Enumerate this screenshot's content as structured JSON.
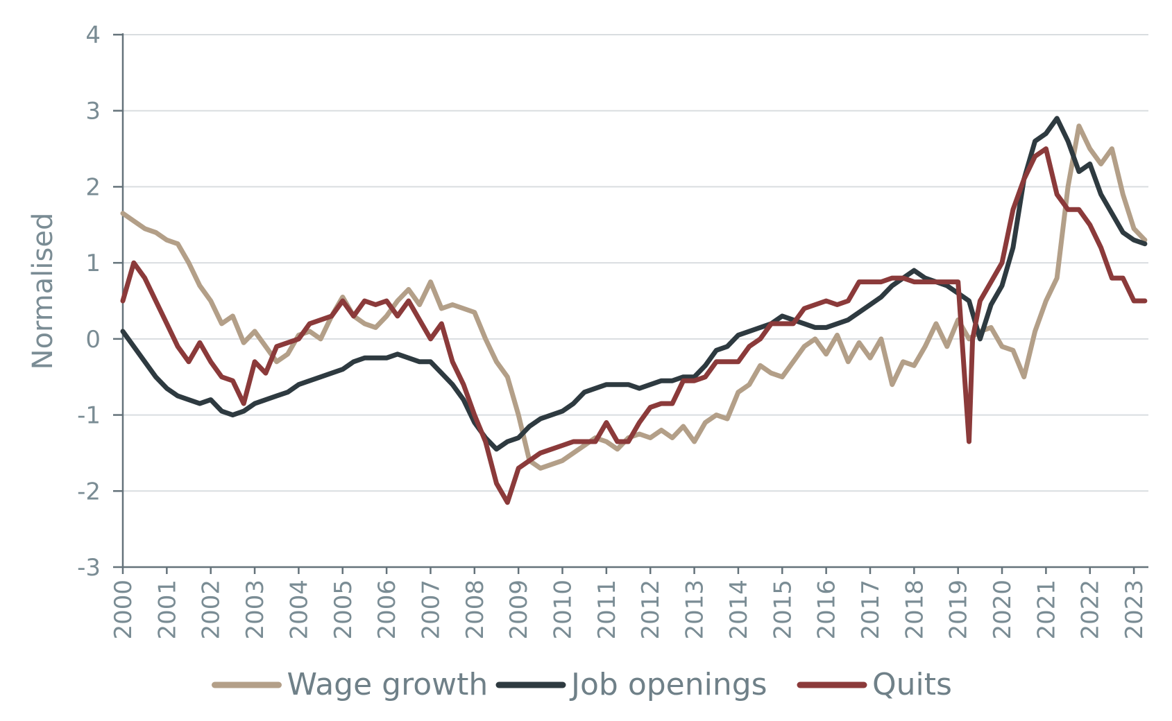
{
  "chart_data": {
    "type": "line",
    "title": "",
    "xlabel": "",
    "ylabel": "Normalised",
    "xlim": [
      2000,
      2023.33
    ],
    "ylim": [
      -3,
      4
    ],
    "yticks": [
      -3,
      -2,
      -1,
      0,
      1,
      2,
      3,
      4
    ],
    "ytick_labels": [
      "-3",
      "-2",
      "-1",
      "0",
      "1",
      "2",
      "3",
      "4"
    ],
    "xticks": [
      2000,
      2001,
      2002,
      2003,
      2004,
      2005,
      2006,
      2007,
      2008,
      2009,
      2010,
      2011,
      2012,
      2013,
      2014,
      2015,
      2016,
      2017,
      2018,
      2019,
      2020,
      2021,
      2022,
      2023
    ],
    "xtick_labels": [
      "2000",
      "2001",
      "2002",
      "2003",
      "2004",
      "2005",
      "2006",
      "2007",
      "2008",
      "2009",
      "2010",
      "2011",
      "2012",
      "2013",
      "2014",
      "2015",
      "2016",
      "2017",
      "2018",
      "2019",
      "2020",
      "2021",
      "2022",
      "2023"
    ],
    "grid": "horizontal",
    "legend_position": "bottom",
    "series": [
      {
        "name": "Wage growth",
        "color": "#b39f88",
        "x": [
          2000.0,
          2000.25,
          2000.5,
          2000.75,
          2001.0,
          2001.25,
          2001.5,
          2001.75,
          2002.0,
          2002.25,
          2002.5,
          2002.75,
          2003.0,
          2003.25,
          2003.5,
          2003.75,
          2004.0,
          2004.25,
          2004.5,
          2004.75,
          2005.0,
          2005.25,
          2005.5,
          2005.75,
          2006.0,
          2006.25,
          2006.5,
          2006.75,
          2007.0,
          2007.25,
          2007.5,
          2007.75,
          2008.0,
          2008.25,
          2008.5,
          2008.75,
          2009.0,
          2009.25,
          2009.5,
          2009.75,
          2010.0,
          2010.25,
          2010.5,
          2010.75,
          2011.0,
          2011.25,
          2011.5,
          2011.75,
          2012.0,
          2012.25,
          2012.5,
          2012.75,
          2013.0,
          2013.25,
          2013.5,
          2013.75,
          2014.0,
          2014.25,
          2014.5,
          2014.75,
          2015.0,
          2015.25,
          2015.5,
          2015.75,
          2016.0,
          2016.25,
          2016.5,
          2016.75,
          2017.0,
          2017.25,
          2017.5,
          2017.75,
          2018.0,
          2018.25,
          2018.5,
          2018.75,
          2019.0,
          2019.25,
          2019.5,
          2019.75,
          2020.0,
          2020.25,
          2020.5,
          2020.75,
          2021.0,
          2021.25,
          2021.5,
          2021.75,
          2022.0,
          2022.25,
          2022.5,
          2022.75,
          2023.0,
          2023.25
        ],
        "values": [
          1.65,
          1.55,
          1.45,
          1.4,
          1.3,
          1.25,
          1.0,
          0.7,
          0.5,
          0.2,
          0.3,
          -0.05,
          0.1,
          -0.1,
          -0.3,
          -0.2,
          0.05,
          0.1,
          0.0,
          0.3,
          0.55,
          0.3,
          0.2,
          0.15,
          0.3,
          0.5,
          0.65,
          0.45,
          0.75,
          0.4,
          0.45,
          0.4,
          0.35,
          0.0,
          -0.3,
          -0.5,
          -1.0,
          -1.6,
          -1.7,
          -1.65,
          -1.6,
          -1.5,
          -1.4,
          -1.3,
          -1.35,
          -1.45,
          -1.3,
          -1.25,
          -1.3,
          -1.2,
          -1.3,
          -1.15,
          -1.35,
          -1.1,
          -1.0,
          -1.05,
          -0.7,
          -0.6,
          -0.35,
          -0.45,
          -0.5,
          -0.3,
          -0.1,
          0.0,
          -0.2,
          0.05,
          -0.3,
          -0.05,
          -0.25,
          0.0,
          -0.6,
          -0.3,
          -0.35,
          -0.1,
          0.2,
          -0.1,
          0.25,
          0.0,
          0.1,
          0.15,
          -0.1,
          -0.15,
          -0.5,
          0.1,
          0.5,
          0.8,
          2.0,
          2.8,
          2.5,
          2.3,
          2.5,
          1.9,
          1.45,
          1.3
        ]
      },
      {
        "name": "Job openings",
        "color": "#2e3a40",
        "x": [
          2000.0,
          2000.25,
          2000.5,
          2000.75,
          2001.0,
          2001.25,
          2001.5,
          2001.75,
          2002.0,
          2002.25,
          2002.5,
          2002.75,
          2003.0,
          2003.25,
          2003.5,
          2003.75,
          2004.0,
          2004.25,
          2004.5,
          2004.75,
          2005.0,
          2005.25,
          2005.5,
          2005.75,
          2006.0,
          2006.25,
          2006.5,
          2006.75,
          2007.0,
          2007.25,
          2007.5,
          2007.75,
          2008.0,
          2008.25,
          2008.5,
          2008.75,
          2009.0,
          2009.25,
          2009.5,
          2009.75,
          2010.0,
          2010.25,
          2010.5,
          2010.75,
          2011.0,
          2011.25,
          2011.5,
          2011.75,
          2012.0,
          2012.25,
          2012.5,
          2012.75,
          2013.0,
          2013.25,
          2013.5,
          2013.75,
          2014.0,
          2014.25,
          2014.5,
          2014.75,
          2015.0,
          2015.25,
          2015.5,
          2015.75,
          2016.0,
          2016.25,
          2016.5,
          2016.75,
          2017.0,
          2017.25,
          2017.5,
          2017.75,
          2018.0,
          2018.25,
          2018.5,
          2018.75,
          2019.0,
          2019.25,
          2019.5,
          2019.75,
          2020.0,
          2020.25,
          2020.5,
          2020.75,
          2021.0,
          2021.25,
          2021.5,
          2021.75,
          2022.0,
          2022.25,
          2022.5,
          2022.75,
          2023.0,
          2023.25
        ],
        "values": [
          0.1,
          -0.1,
          -0.3,
          -0.5,
          -0.65,
          -0.75,
          -0.8,
          -0.85,
          -0.8,
          -0.95,
          -1.0,
          -0.95,
          -0.85,
          -0.8,
          -0.75,
          -0.7,
          -0.6,
          -0.55,
          -0.5,
          -0.45,
          -0.4,
          -0.3,
          -0.25,
          -0.25,
          -0.25,
          -0.2,
          -0.25,
          -0.3,
          -0.3,
          -0.45,
          -0.6,
          -0.8,
          -1.1,
          -1.3,
          -1.45,
          -1.35,
          -1.3,
          -1.15,
          -1.05,
          -1.0,
          -0.95,
          -0.85,
          -0.7,
          -0.65,
          -0.6,
          -0.6,
          -0.6,
          -0.65,
          -0.6,
          -0.55,
          -0.55,
          -0.5,
          -0.5,
          -0.35,
          -0.15,
          -0.1,
          0.05,
          0.1,
          0.15,
          0.2,
          0.3,
          0.25,
          0.2,
          0.15,
          0.15,
          0.2,
          0.25,
          0.35,
          0.45,
          0.55,
          0.7,
          0.8,
          0.9,
          0.8,
          0.75,
          0.7,
          0.6,
          0.5,
          0.0,
          0.45,
          0.7,
          1.2,
          2.1,
          2.6,
          2.7,
          2.9,
          2.6,
          2.2,
          2.3,
          1.9,
          1.65,
          1.4,
          1.3,
          1.25
        ]
      },
      {
        "name": "Quits",
        "color": "#8b3a3a",
        "x": [
          2000.0,
          2000.25,
          2000.5,
          2000.75,
          2001.0,
          2001.25,
          2001.5,
          2001.75,
          2002.0,
          2002.25,
          2002.5,
          2002.75,
          2003.0,
          2003.25,
          2003.5,
          2003.75,
          2004.0,
          2004.25,
          2004.5,
          2004.75,
          2005.0,
          2005.25,
          2005.5,
          2005.75,
          2006.0,
          2006.25,
          2006.5,
          2006.75,
          2007.0,
          2007.25,
          2007.5,
          2007.75,
          2008.0,
          2008.25,
          2008.5,
          2008.75,
          2009.0,
          2009.25,
          2009.5,
          2009.75,
          2010.0,
          2010.25,
          2010.5,
          2010.75,
          2011.0,
          2011.25,
          2011.5,
          2011.75,
          2012.0,
          2012.25,
          2012.5,
          2012.75,
          2013.0,
          2013.25,
          2013.5,
          2013.75,
          2014.0,
          2014.25,
          2014.5,
          2014.75,
          2015.0,
          2015.25,
          2015.5,
          2015.75,
          2016.0,
          2016.25,
          2016.5,
          2016.75,
          2017.0,
          2017.25,
          2017.5,
          2017.75,
          2018.0,
          2018.25,
          2018.5,
          2018.75,
          2019.0,
          2019.25,
          2019.33,
          2019.5,
          2019.75,
          2020.0,
          2020.25,
          2020.5,
          2020.75,
          2021.0,
          2021.25,
          2021.5,
          2021.75,
          2022.0,
          2022.25,
          2022.5,
          2022.75,
          2023.0,
          2023.25
        ],
        "values": [
          0.5,
          1.0,
          0.8,
          0.5,
          0.2,
          -0.1,
          -0.3,
          -0.05,
          -0.3,
          -0.5,
          -0.55,
          -0.85,
          -0.3,
          -0.45,
          -0.1,
          -0.05,
          0.0,
          0.2,
          0.25,
          0.3,
          0.5,
          0.3,
          0.5,
          0.45,
          0.5,
          0.3,
          0.5,
          0.25,
          0.0,
          0.2,
          -0.3,
          -0.6,
          -1.0,
          -1.35,
          -1.9,
          -2.15,
          -1.7,
          -1.6,
          -1.5,
          -1.45,
          -1.4,
          -1.35,
          -1.35,
          -1.35,
          -1.1,
          -1.35,
          -1.35,
          -1.1,
          -0.9,
          -0.85,
          -0.85,
          -0.55,
          -0.55,
          -0.5,
          -0.3,
          -0.3,
          -0.3,
          -0.1,
          0.0,
          0.2,
          0.2,
          0.2,
          0.4,
          0.45,
          0.5,
          0.45,
          0.5,
          0.75,
          0.75,
          0.75,
          0.8,
          0.8,
          0.75,
          0.75,
          0.75,
          0.75,
          0.75,
          -1.35,
          0.0,
          0.5,
          0.75,
          1.0,
          1.7,
          2.1,
          2.4,
          2.5,
          1.9,
          1.7,
          1.7,
          1.5,
          1.2,
          0.8,
          0.8,
          0.5,
          0.5
        ]
      }
    ]
  }
}
